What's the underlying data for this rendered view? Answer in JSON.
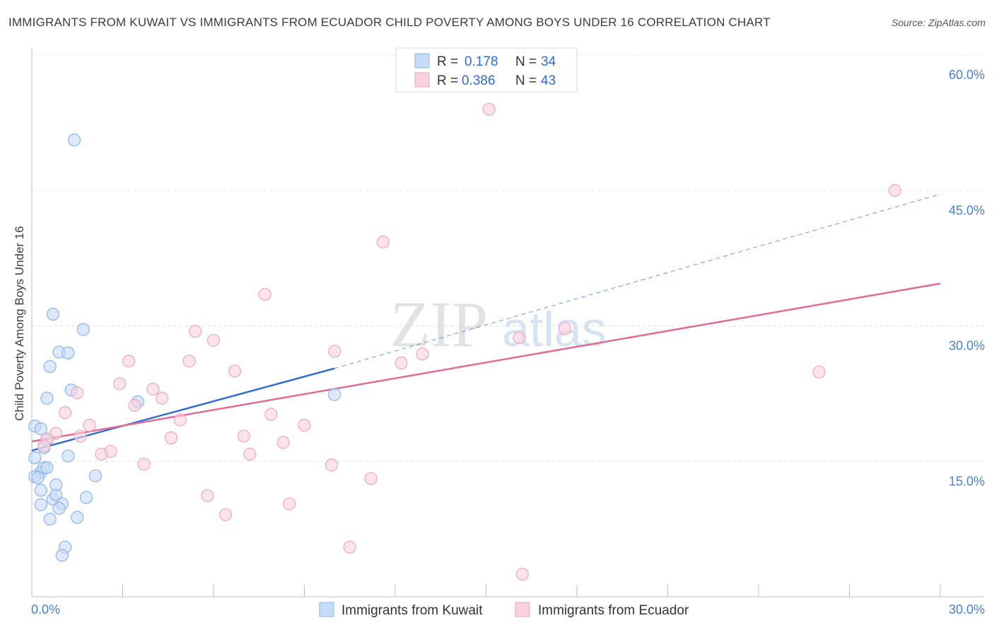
{
  "title": "IMMIGRANTS FROM KUWAIT VS IMMIGRANTS FROM ECUADOR CHILD POVERTY AMONG BOYS UNDER 16 CORRELATION CHART",
  "source": "Source: ZipAtlas.com",
  "watermark": {
    "zip": "ZIP",
    "atlas": "atlas"
  },
  "legend": {
    "r_label": "R =",
    "n_label": "N =",
    "entries": [
      {
        "r": "0.178",
        "n": "34"
      },
      {
        "r": "0.386",
        "n": "43"
      }
    ]
  },
  "chart_data": {
    "type": "scatter",
    "title": "IMMIGRANTS FROM KUWAIT VS IMMIGRANTS FROM ECUADOR CHILD POVERTY AMONG BOYS UNDER 16 CORRELATION CHART",
    "xlabel": "",
    "ylabel": "Child Poverty Among Boys Under 16",
    "xlim": [
      0,
      30
    ],
    "ylim": [
      0,
      60
    ],
    "x_tick_labels": [
      "0.0%",
      "30.0%"
    ],
    "y_ticks": [
      15,
      30,
      45,
      60
    ],
    "y_tick_labels": [
      "15.0%",
      "30.0%",
      "45.0%",
      "60.0%"
    ],
    "grid": true,
    "legend_position": "top-center",
    "series": [
      {
        "name": "Immigrants from Kuwait",
        "color": "#8ab4ea",
        "fill": "#c6dbf7",
        "line_color": "#2f6cd0",
        "trend": {
          "x0": 0,
          "y0": 16.2,
          "x1": 10.0,
          "y1": 25.3,
          "dash_to": {
            "x": 30,
            "y": 44.6
          }
        },
        "points": [
          [
            0.1,
            18.9
          ],
          [
            0.3,
            18.6
          ],
          [
            0.5,
            17.4
          ],
          [
            0.4,
            16.5
          ],
          [
            0.1,
            15.4
          ],
          [
            0.3,
            13.8
          ],
          [
            0.4,
            14.3
          ],
          [
            0.1,
            13.3
          ],
          [
            0.2,
            13.2
          ],
          [
            0.3,
            11.8
          ],
          [
            0.3,
            10.2
          ],
          [
            0.7,
            10.8
          ],
          [
            0.8,
            11.3
          ],
          [
            0.8,
            12.4
          ],
          [
            1.0,
            10.3
          ],
          [
            0.6,
            8.6
          ],
          [
            0.9,
            9.8
          ],
          [
            1.5,
            8.8
          ],
          [
            1.8,
            11.0
          ],
          [
            1.2,
            15.6
          ],
          [
            2.1,
            13.4
          ],
          [
            1.1,
            5.5
          ],
          [
            1.0,
            4.6
          ],
          [
            0.5,
            22.0
          ],
          [
            0.6,
            25.5
          ],
          [
            0.9,
            27.1
          ],
          [
            1.2,
            27.0
          ],
          [
            0.7,
            31.3
          ],
          [
            1.7,
            29.6
          ],
          [
            1.3,
            22.9
          ],
          [
            3.5,
            21.6
          ],
          [
            10.0,
            22.4
          ],
          [
            1.4,
            50.6
          ],
          [
            0.5,
            14.3
          ]
        ]
      },
      {
        "name": "Immigrants from Ecuador",
        "color": "#eea6bf",
        "fill": "#f9d0de",
        "line_color": "#e06b97",
        "trend": {
          "x0": 0,
          "y0": 17.2,
          "x1": 30,
          "y1": 34.7
        },
        "points": [
          [
            15.1,
            54.0
          ],
          [
            28.5,
            45.0
          ],
          [
            11.6,
            39.3
          ],
          [
            7.7,
            33.5
          ],
          [
            5.4,
            29.4
          ],
          [
            6.0,
            28.4
          ],
          [
            17.6,
            29.7
          ],
          [
            16.1,
            28.7
          ],
          [
            10.0,
            27.2
          ],
          [
            12.9,
            26.9
          ],
          [
            3.2,
            26.1
          ],
          [
            5.2,
            26.1
          ],
          [
            6.7,
            25.0
          ],
          [
            12.2,
            25.9
          ],
          [
            26.0,
            24.9
          ],
          [
            2.9,
            23.6
          ],
          [
            1.5,
            22.6
          ],
          [
            4.0,
            23.0
          ],
          [
            4.3,
            22.0
          ],
          [
            3.4,
            21.2
          ],
          [
            1.1,
            20.4
          ],
          [
            7.9,
            20.2
          ],
          [
            4.9,
            19.6
          ],
          [
            1.9,
            19.0
          ],
          [
            9.0,
            19.0
          ],
          [
            0.8,
            18.1
          ],
          [
            1.6,
            17.8
          ],
          [
            7.0,
            17.8
          ],
          [
            4.6,
            17.6
          ],
          [
            0.5,
            17.5
          ],
          [
            8.3,
            17.1
          ],
          [
            0.4,
            16.7
          ],
          [
            2.6,
            16.1
          ],
          [
            2.3,
            15.8
          ],
          [
            7.2,
            15.8
          ],
          [
            3.7,
            14.7
          ],
          [
            9.9,
            14.6
          ],
          [
            11.2,
            13.1
          ],
          [
            5.8,
            11.2
          ],
          [
            8.5,
            10.3
          ],
          [
            6.4,
            9.1
          ],
          [
            10.5,
            5.5
          ],
          [
            16.2,
            2.5
          ]
        ]
      }
    ]
  }
}
